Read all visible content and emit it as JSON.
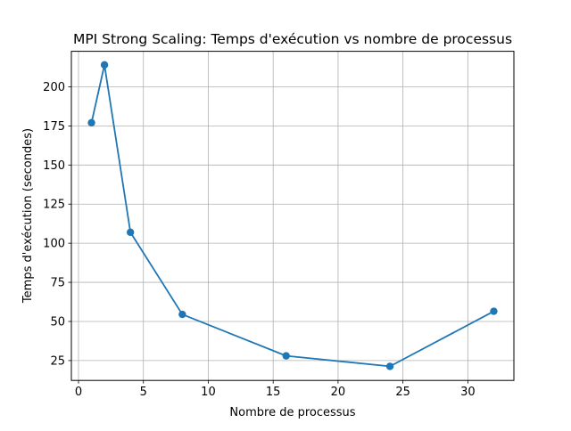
{
  "chart_data": {
    "type": "line",
    "title": "MPI Strong Scaling: Temps d'exécution vs nombre de processus",
    "xlabel": "Nombre de processus",
    "ylabel": "Temps d'exécution (secondes)",
    "xlim": [
      -0.55,
      33.55
    ],
    "ylim": [
      12.3,
      222.7
    ],
    "xticks": [
      0,
      5,
      10,
      15,
      20,
      25,
      30
    ],
    "yticks": [
      25,
      50,
      75,
      100,
      125,
      150,
      175,
      200
    ],
    "grid": true,
    "marker": "circle",
    "series": [
      {
        "color": "#1f77b4",
        "x": [
          1,
          2,
          4,
          8,
          16,
          24,
          32
        ],
        "y": [
          177,
          214,
          107,
          54.5,
          28,
          21.3,
          56.5
        ]
      }
    ]
  }
}
